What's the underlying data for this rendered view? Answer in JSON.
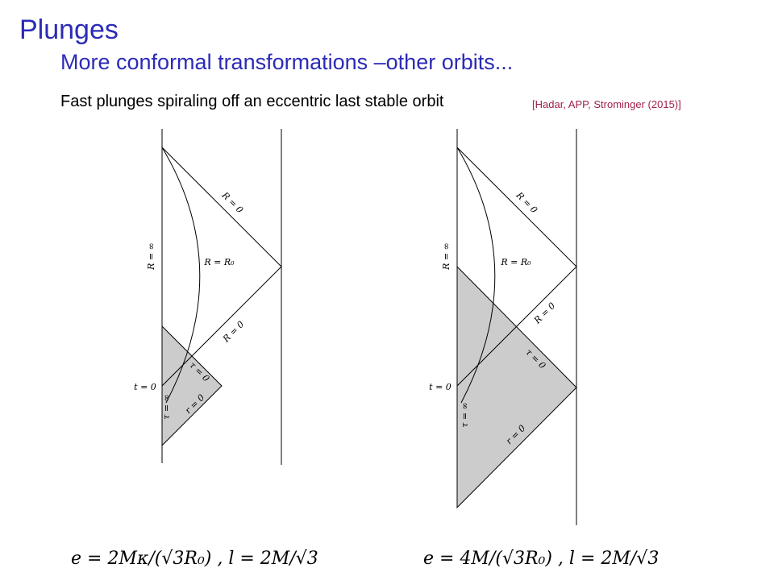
{
  "header": {
    "title": "Plunges",
    "subtitle": "More conformal transformations –other orbits..."
  },
  "body": {
    "text": "Fast plunges spiraling off an eccentric last stable orbit",
    "citation": "[Hadar, APP, Strominger (2015)]"
  },
  "diagrams": [
    {
      "labels": [
        "R = 0",
        "R = ∞",
        "R = R₀",
        "R = 0",
        "t = 0",
        "τ = 0",
        "τ = ∞",
        "r = 0"
      ],
      "formula": "e = 2Mκ/(√3R₀) , l = 2M/√3"
    },
    {
      "labels": [
        "R = 0",
        "R = ∞",
        "R = R₀",
        "R = 0",
        "t = 0",
        "τ = 0",
        "τ = ∞",
        "r = 0"
      ],
      "formula": "e = 4M/(√3R₀) , l = 2M/√3"
    }
  ]
}
